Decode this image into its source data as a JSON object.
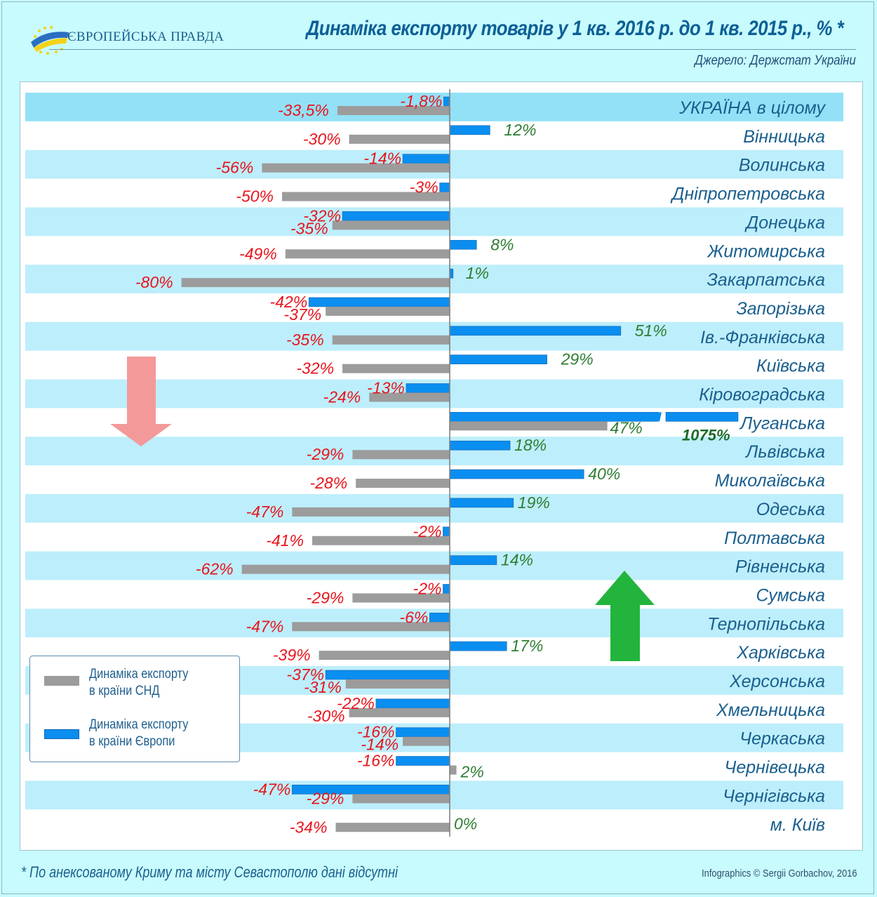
{
  "header": {
    "logo_text": "ЄВРОПЕЙСЬКА ПРАВДА",
    "title": "Динаміка експорту товарів у 1 кв. 2016 р.  до 1 кв. 2015 р., % *",
    "source": "Джерело: Держстат України"
  },
  "legend": {
    "cis": "Динаміка експорту\nв країни СНД",
    "cis_line1": "Динаміка експорту",
    "cis_line2": "в країни СНД",
    "europe_line1": "Динаміка експорту",
    "europe_line2": "в країни Європи"
  },
  "footer": {
    "footnote": "* По анексованому Криму та місту Севастополю дані відсутні",
    "credit": "Infographics © Sergii Gorbachov, 2016"
  },
  "colors": {
    "europe": "#0a8ef0",
    "cis": "#9c9c9c",
    "negative_label": "#e8141c",
    "positive_label": "#2e7d32",
    "region_label": "#1a5f8e",
    "stripe": "#bdeefb",
    "stripe_total": "#93e1f6",
    "arrow_down": "#f4999a",
    "arrow_up": "#22b43c"
  },
  "chart_data": {
    "type": "bar",
    "orientation": "horizontal",
    "title": "Динаміка експорту товарів у 1 кв. 2016 р.  до 1 кв. 2015 р., % *",
    "xlabel": "",
    "ylabel": "",
    "xlim": [
      -80,
      85
    ],
    "grid": false,
    "legend_position": "bottom-left",
    "categories": [
      "УКРАЇНА в цілому",
      "Вінницька",
      "Волинська",
      "Дніпропетровська",
      "Донецька",
      "Житомирська",
      "Закарпатська",
      "Запорізька",
      "Ів.-Франківська",
      "Київська",
      "Кіровоградська",
      "Луганська",
      "Львівська",
      "Миколаївська",
      "Одеська",
      "Полтавська",
      "Рівненська",
      "Сумська",
      "Тернопільська",
      "Харківська",
      "Херсонська",
      "Хмельницька",
      "Черкаська",
      "Чернівецька",
      "Чернігівська",
      "м. Київ"
    ],
    "series": [
      {
        "name": "Динаміка експорту в країни Європи",
        "values": [
          -1.8,
          12,
          -14,
          -3,
          -32,
          8,
          1,
          -42,
          51,
          29,
          -13,
          1075,
          18,
          40,
          19,
          -2,
          14,
          -2,
          -6,
          17,
          -37,
          -22,
          -16,
          -16,
          -47,
          0
        ],
        "labels": [
          "-1,8%",
          "12%",
          "-14%",
          "-3%",
          "-32%",
          "8%",
          "1%",
          "-42%",
          "51%",
          "29%",
          "-13%",
          "1075%",
          "18%",
          "40%",
          "19%",
          "-2%",
          "14%",
          "-2%",
          "-6%",
          "17%",
          "-37%",
          "-22%",
          "-16%",
          "-16%",
          "-47%",
          "0%"
        ]
      },
      {
        "name": "Динаміка експорту в країни СНД",
        "values": [
          -33.5,
          -30,
          -56,
          -50,
          -35,
          -49,
          -80,
          -37,
          -35,
          -32,
          -24,
          47,
          -29,
          -28,
          -47,
          -41,
          -62,
          -29,
          -47,
          -39,
          -31,
          -30,
          -14,
          2,
          -29,
          -34
        ],
        "labels": [
          "-33,5%",
          "-30%",
          "-56%",
          "-50%",
          "-35%",
          "-49%",
          "-80%",
          "-37%",
          "-35%",
          "-32%",
          "-24%",
          "47%",
          "-29%",
          "-28%",
          "-47%",
          "-41%",
          "-62%",
          "-29%",
          "-47%",
          "-39%",
          "-31%",
          "-30%",
          "-14%",
          "2%",
          "-29%",
          "-34%"
        ]
      }
    ],
    "annotations": [
      "Луганська Europe bar truncated with break mark (1075%)",
      "down arrow (decline)",
      "up arrow (growth)"
    ]
  }
}
